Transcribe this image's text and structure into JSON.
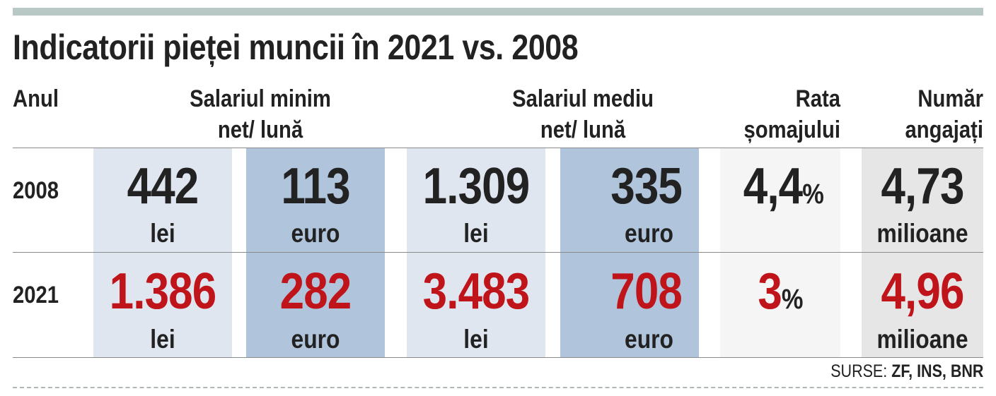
{
  "colors": {
    "accent_bar": "#b7c8c5",
    "lei_col": "#e0e6f0",
    "euro_col": "#b0c4db",
    "rate_col": "#f5f5f5",
    "emp_col": "#e6e6e6",
    "val_2008": "#222222",
    "val_2021": "#c0141b"
  },
  "chart_data": {
    "type": "table",
    "title": "Indicatorii pieței muncii în 2021 vs. 2008",
    "headers": {
      "year": "Anul",
      "min_wage": [
        "Salariul minim",
        "net/ lună"
      ],
      "avg_wage": [
        "Salariul mediu",
        "net/ lună"
      ],
      "unemployment": [
        "Rata",
        "șomajului"
      ],
      "employees": [
        "Număr",
        "angajați"
      ]
    },
    "units": {
      "lei": "lei",
      "euro": "euro",
      "percent": "%",
      "millions": "milioane"
    },
    "rows": [
      {
        "year": "2008",
        "min_wage_lei": "442",
        "min_wage_euro": "113",
        "avg_wage_lei": "1.309",
        "avg_wage_euro": "335",
        "unemployment": "4,4",
        "employees": "4,73"
      },
      {
        "year": "2021",
        "min_wage_lei": "1.386",
        "min_wage_euro": "282",
        "avg_wage_lei": "3.483",
        "avg_wage_euro": "708",
        "unemployment": "3",
        "employees": "4,96"
      }
    ],
    "source_label": "SURSE:",
    "source_names": "ZF, INS, BNR"
  }
}
